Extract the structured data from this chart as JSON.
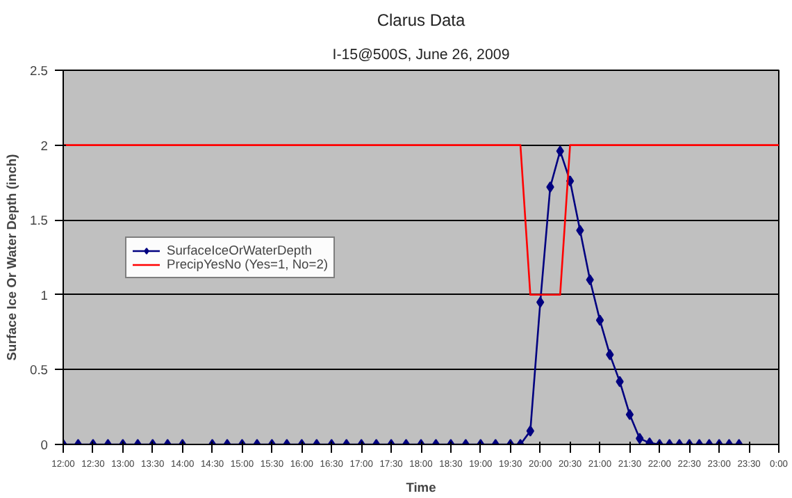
{
  "chart_data": {
    "type": "line",
    "title": "Clarus Data",
    "subtitle": "I-15@500S, June 26, 2009",
    "xlabel": "Time",
    "ylabel": "Surface Ice Or Water Depth (inch)",
    "xlim": [
      12,
      24
    ],
    "ylim": [
      0,
      2.5
    ],
    "xticks": [
      {
        "value": 12,
        "label": "12:00"
      },
      {
        "value": 12.5,
        "label": "12:30"
      },
      {
        "value": 13,
        "label": "13:00"
      },
      {
        "value": 13.5,
        "label": "13:30"
      },
      {
        "value": 14,
        "label": "14:00"
      },
      {
        "value": 14.5,
        "label": "14:30"
      },
      {
        "value": 15,
        "label": "15:00"
      },
      {
        "value": 15.5,
        "label": "15:30"
      },
      {
        "value": 16,
        "label": "16:00"
      },
      {
        "value": 16.5,
        "label": "16:30"
      },
      {
        "value": 17,
        "label": "17:00"
      },
      {
        "value": 17.5,
        "label": "17:30"
      },
      {
        "value": 18,
        "label": "18:00"
      },
      {
        "value": 18.5,
        "label": "18:30"
      },
      {
        "value": 19,
        "label": "19:00"
      },
      {
        "value": 19.5,
        "label": "19:30"
      },
      {
        "value": 20,
        "label": "20:00"
      },
      {
        "value": 20.5,
        "label": "20:30"
      },
      {
        "value": 21,
        "label": "21:00"
      },
      {
        "value": 21.5,
        "label": "21:30"
      },
      {
        "value": 22,
        "label": "22:00"
      },
      {
        "value": 22.5,
        "label": "22:30"
      },
      {
        "value": 23,
        "label": "23:00"
      },
      {
        "value": 23.5,
        "label": "23:30"
      },
      {
        "value": 24,
        "label": "0:00"
      }
    ],
    "yticks": [
      0,
      0.5,
      1,
      1.5,
      2,
      2.5
    ],
    "grid": "y",
    "legend": "left",
    "series": [
      {
        "name": "SurfaceIceOrWaterDepth",
        "color": "#000080",
        "marker": "diamond",
        "x": [
          12,
          12.25,
          12.5,
          12.75,
          13,
          13.25,
          13.5,
          13.75,
          14,
          14.25,
          14.5,
          14.75,
          15,
          15.25,
          15.5,
          15.75,
          16,
          16.25,
          16.5,
          16.75,
          17,
          17.25,
          17.5,
          17.75,
          18,
          18.25,
          18.5,
          18.75,
          19,
          19.25,
          19.5,
          19.667,
          19.833,
          20,
          20.167,
          20.333,
          20.5,
          20.667,
          20.833,
          21,
          21.167,
          21.333,
          21.5,
          21.667,
          21.833,
          22,
          22.167,
          22.333,
          22.5,
          22.667,
          22.833,
          23,
          23.167,
          23.333
        ],
        "values": [
          0,
          0,
          0,
          0,
          0,
          0,
          0,
          0,
          0,
          null,
          0,
          0,
          0,
          0,
          0,
          0,
          0,
          0,
          0,
          0,
          0,
          0,
          0,
          0,
          0,
          0,
          0,
          0,
          0,
          0,
          0,
          0,
          0.09,
          0.95,
          1.72,
          1.96,
          1.76,
          1.43,
          1.1,
          0.83,
          0.6,
          0.42,
          0.2,
          0.04,
          0.01,
          0,
          0,
          0,
          0,
          0,
          0,
          0,
          0,
          0
        ]
      },
      {
        "name": "PrecipYesNo (Yes=1, No=2)",
        "color": "#ff0000",
        "marker": "none",
        "x": [
          12,
          19.667,
          19.833,
          20,
          20.167,
          20.333,
          20.5,
          24
        ],
        "values": [
          2,
          2,
          1,
          1,
          1,
          1,
          2,
          2
        ]
      }
    ]
  }
}
